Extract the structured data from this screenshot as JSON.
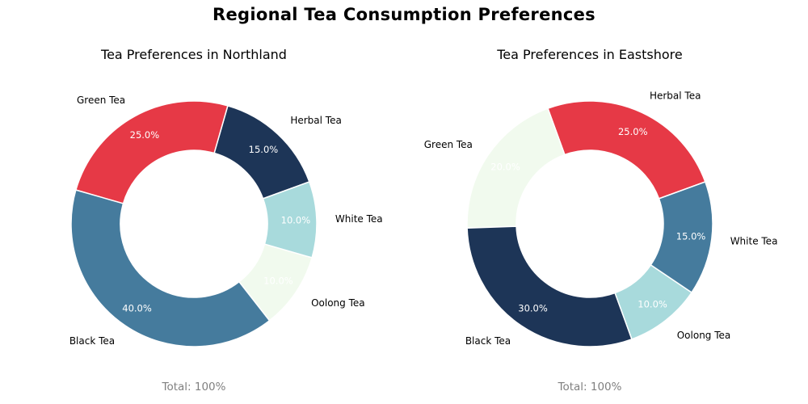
{
  "title": "Regional Tea Consumption Preferences",
  "chart_data": [
    {
      "type": "pie",
      "donut": true,
      "title": "Tea Preferences in Northland",
      "footer": "Total: 100%",
      "slices": [
        {
          "label": "Herbal Tea",
          "value": 15.0,
          "pct": "15.0%",
          "color": "#1d3557"
        },
        {
          "label": "Green Tea",
          "value": 25.0,
          "pct": "25.0%",
          "color": "#e63946"
        },
        {
          "label": "Black Tea",
          "value": 40.0,
          "pct": "40.0%",
          "color": "#457b9d"
        },
        {
          "label": "Oolong Tea",
          "value": 10.0,
          "pct": "10.0%",
          "color": "#f1faee"
        },
        {
          "label": "White Tea",
          "value": 10.0,
          "pct": "10.0%",
          "color": "#a8dadc"
        }
      ]
    },
    {
      "type": "pie",
      "donut": true,
      "title": "Tea Preferences in Eastshore",
      "footer": "Total: 100%",
      "slices": [
        {
          "label": "Herbal Tea",
          "value": 25.0,
          "pct": "25.0%",
          "color": "#e63946"
        },
        {
          "label": "Green Tea",
          "value": 20.0,
          "pct": "20.0%",
          "color": "#f1faee"
        },
        {
          "label": "Black Tea",
          "value": 30.0,
          "pct": "30.0%",
          "color": "#1d3557"
        },
        {
          "label": "Oolong Tea",
          "value": 10.0,
          "pct": "10.0%",
          "color": "#a8dadc"
        },
        {
          "label": "White Tea",
          "value": 15.0,
          "pct": "15.0%",
          "color": "#457b9d"
        }
      ]
    }
  ]
}
